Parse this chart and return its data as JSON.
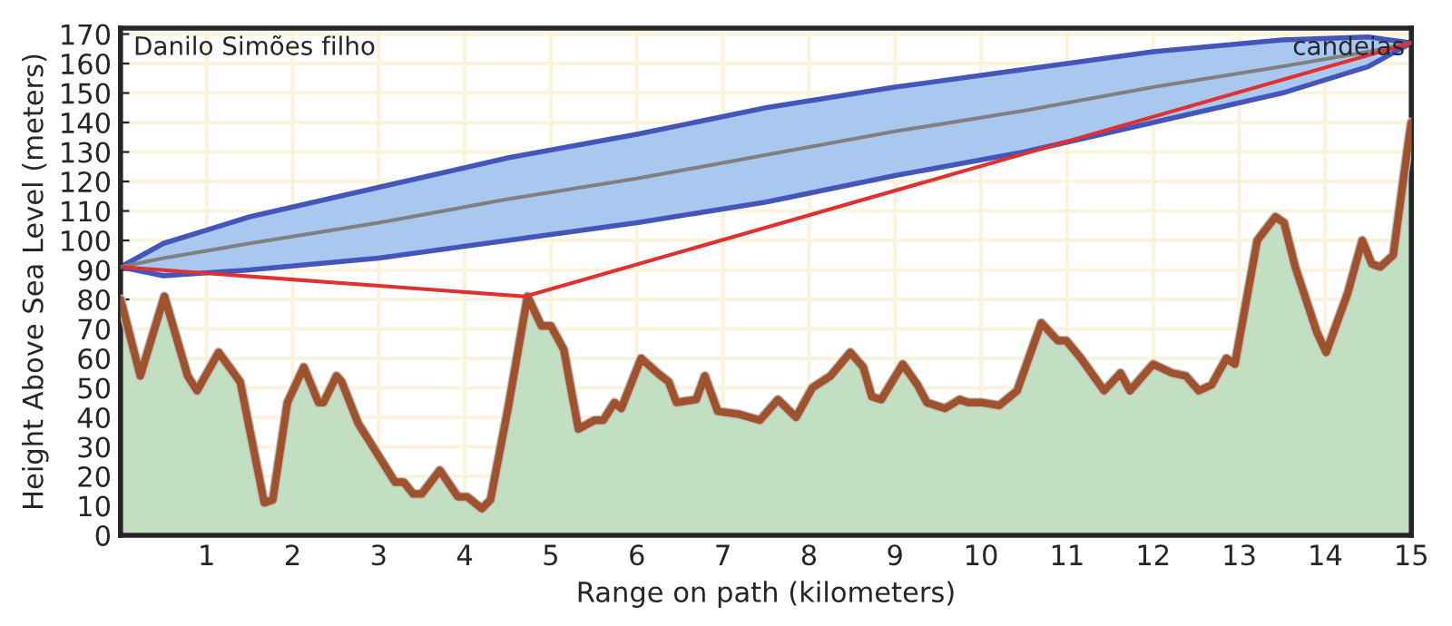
{
  "chart_data": {
    "type": "area",
    "xlabel": "Range on path (kilometers)",
    "ylabel": "Height Above Sea Level (meters)",
    "annotations": [
      "Danilo Simões filho",
      "candeias"
    ],
    "xlim": [
      0,
      15
    ],
    "xticks": [
      1,
      2,
      3,
      4,
      5,
      6,
      7,
      8,
      9,
      10,
      11,
      12,
      13,
      14,
      15
    ],
    "ylim": [
      0,
      172
    ],
    "yticks": [
      0,
      10,
      20,
      30,
      40,
      50,
      60,
      70,
      80,
      90,
      100,
      110,
      120,
      130,
      140,
      150,
      160,
      170
    ],
    "grid": true,
    "legend": false,
    "series": [
      {
        "color": "#c2dfc2",
        "x": [
          0,
          0.23,
          0.51,
          0.78,
          0.89,
          1.14,
          1.39,
          1.67,
          1.77,
          1.94,
          2.13,
          2.3,
          2.36,
          2.51,
          2.57,
          2.76,
          3.19,
          3.29,
          3.4,
          3.5,
          3.71,
          3.92,
          4.03,
          4.2,
          4.3,
          4.51,
          4.73,
          4.89,
          5.0,
          5.15,
          5.32,
          5.51,
          5.61,
          5.74,
          5.82,
          6.05,
          6.24,
          6.37,
          6.46,
          6.69,
          6.79,
          6.94,
          7.19,
          7.43,
          7.64,
          7.85,
          8.04,
          8.25,
          8.48,
          8.63,
          8.73,
          8.84,
          9.09,
          9.26,
          9.37,
          9.58,
          9.75,
          9.85,
          10.0,
          10.21,
          10.42,
          10.7,
          10.89,
          10.99,
          11.16,
          11.43,
          11.62,
          11.73,
          12.0,
          12.22,
          12.38,
          12.53,
          12.68,
          12.85,
          12.95,
          13.21,
          13.42,
          13.52,
          13.65,
          13.9,
          14.01,
          14.26,
          14.43,
          14.54,
          14.64,
          14.79,
          14.96,
          15
        ],
        "values": [
          80,
          54,
          81,
          54,
          49,
          62,
          52,
          11,
          12,
          45,
          57,
          45,
          45,
          54,
          52,
          38,
          18,
          18,
          14,
          14,
          22,
          13,
          13,
          9,
          12,
          44,
          81,
          71,
          71,
          63,
          36,
          39,
          39,
          45,
          43,
          60,
          55,
          52,
          45,
          46,
          54,
          42,
          41,
          39,
          46,
          40,
          50,
          54,
          62,
          57,
          47,
          46,
          58,
          51,
          45,
          43,
          46,
          45,
          45,
          44,
          49,
          72,
          66,
          66,
          60,
          49,
          55,
          49,
          58,
          55,
          54,
          49,
          51,
          60,
          58,
          100,
          108,
          106,
          91,
          69,
          62,
          82,
          100,
          92,
          91,
          95,
          132,
          140
        ]
      },
      {
        "type": "line",
        "color": "#808080",
        "x": [
          0,
          0.5,
          1.5,
          3,
          4.5,
          6,
          7.5,
          9,
          10.5,
          12,
          13.5,
          14.5,
          15
        ],
        "values": [
          91,
          94,
          99,
          106,
          114,
          121,
          129,
          137,
          144,
          152,
          159,
          164,
          167
        ],
        "lower": [
          91,
          88,
          90,
          94,
          100,
          106,
          113,
          122,
          130,
          140,
          150,
          159,
          167
        ],
        "upper": [
          91,
          99,
          108,
          118,
          128,
          136,
          145,
          152,
          158,
          164,
          168,
          169,
          167
        ]
      },
      {
        "type": "line",
        "color": "#e03030",
        "x": [
          0,
          4.7,
          15
        ],
        "values": [
          91,
          81,
          167
        ]
      }
    ]
  }
}
